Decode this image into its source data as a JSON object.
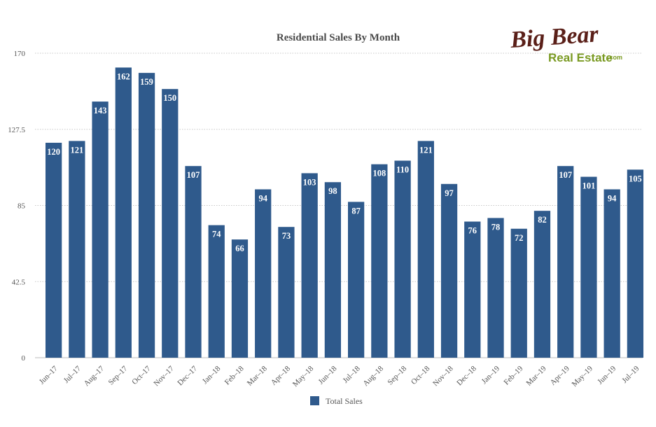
{
  "logo": {
    "main": "Big Bear",
    "sub": "Real Estate",
    "suffix": ".com"
  },
  "colors": {
    "bar": "#2f5a8c",
    "grid": "#c8c8c8",
    "logo_primary": "#5a1f18",
    "logo_secondary": "#7a9a22"
  },
  "chart_data": {
    "type": "bar",
    "title": "Residential Sales By Month",
    "xlabel": "",
    "ylabel": "",
    "ylim": [
      0,
      170
    ],
    "yticks": [
      "0",
      "42.5",
      "85",
      "127.5",
      "170"
    ],
    "grid": true,
    "legend_position": "bottom-center",
    "categories": [
      "Jun–17",
      "Jul–17",
      "Aug–17",
      "Sep–17",
      "Oct–17",
      "Nov–17",
      "Dec–17",
      "Jan–18",
      "Feb–18",
      "Mar–18",
      "Apr–18",
      "May–18",
      "Jun–18",
      "Jul–18",
      "Aug–18",
      "Sep–18",
      "Oct–18",
      "Nov–18",
      "Dec–18",
      "Jan–19",
      "Feb–19",
      "Mar–19",
      "Apr–19",
      "May–19",
      "Jun–19",
      "Jul–19"
    ],
    "series": [
      {
        "name": "Total Sales",
        "values": [
          120,
          121,
          143,
          162,
          159,
          150,
          107,
          74,
          66,
          94,
          73,
          103,
          98,
          87,
          108,
          110,
          121,
          97,
          76,
          78,
          72,
          82,
          107,
          101,
          94,
          105
        ]
      }
    ]
  }
}
